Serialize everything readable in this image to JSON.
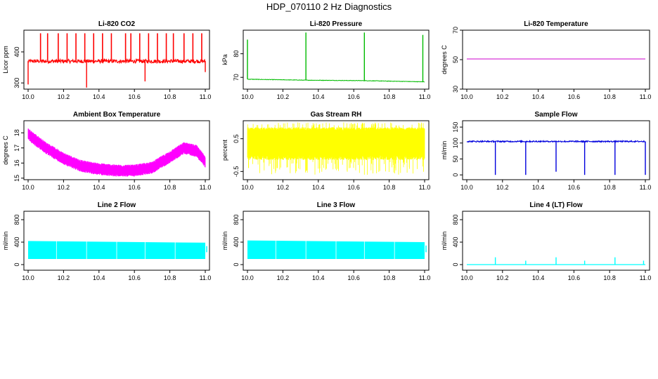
{
  "page_title": "HDP_070110  2 Hz Diagnostics",
  "chart_data": [
    {
      "id": "co2",
      "type": "line",
      "title": "Li-820 CO2",
      "ylabel": "Licor ppm",
      "color": "#ff0000",
      "xlim": [
        10.0,
        11.0
      ],
      "ylim": [
        280,
        470
      ],
      "yticks": [
        300,
        400
      ],
      "xticks": [
        "10.0",
        "10.2",
        "10.4",
        "10.6",
        "10.8",
        "11.0"
      ],
      "baseline": 370,
      "noise": 6,
      "spikes": [
        10.07,
        10.11,
        10.17,
        10.22,
        10.27,
        10.32,
        10.37,
        10.42,
        10.47,
        10.55,
        10.58,
        10.63,
        10.68,
        10.73,
        10.78,
        10.82,
        10.88,
        10.93,
        10.98
      ],
      "spike_value": 460,
      "dips": [
        {
          "x": 10.0,
          "y": 295
        },
        {
          "x": 10.33,
          "y": 285
        },
        {
          "x": 10.66,
          "y": 305
        },
        {
          "x": 11.0,
          "y": 335
        }
      ]
    },
    {
      "id": "pressure",
      "type": "line",
      "title": "Li-820 Pressure",
      "ylabel": "kPa",
      "color": "#00bb00",
      "xlim": [
        10.0,
        11.0
      ],
      "ylim": [
        65,
        90
      ],
      "yticks": [
        70,
        80
      ],
      "xticks": [
        "10.0",
        "10.2",
        "10.4",
        "10.6",
        "10.8",
        "11.0"
      ],
      "points": [
        [
          10.0,
          69.2
        ],
        [
          10.33,
          68.8
        ],
        [
          10.66,
          68.6
        ],
        [
          11.0,
          68.1
        ]
      ],
      "spikes": [
        {
          "x": 10.0,
          "y": 86
        },
        {
          "x": 10.33,
          "y": 89
        },
        {
          "x": 10.66,
          "y": 89
        },
        {
          "x": 10.99,
          "y": 88
        }
      ]
    },
    {
      "id": "li820temp",
      "type": "line",
      "title": "Li-820 Temperature",
      "ylabel": "degrees C",
      "color": "#cc00cc",
      "xlim": [
        10.0,
        11.0
      ],
      "ylim": [
        30,
        70
      ],
      "yticks": [
        30,
        50,
        70
      ],
      "xticks": [
        "10.0",
        "10.2",
        "10.4",
        "10.6",
        "10.8",
        "11.0"
      ],
      "constant": 50.5
    },
    {
      "id": "boxtemp",
      "type": "line",
      "title": "Ambient Box Temperature",
      "ylabel": "degrees C",
      "color": "#ff00ff",
      "xlim": [
        10.0,
        11.0
      ],
      "ylim": [
        14.9,
        18.8
      ],
      "yticks": [
        15,
        16,
        17,
        18
      ],
      "xticks": [
        "10.0",
        "10.2",
        "10.4",
        "10.6",
        "10.8",
        "11.0"
      ],
      "points": [
        [
          10.0,
          17.9
        ],
        [
          10.1,
          17.0
        ],
        [
          10.2,
          16.3
        ],
        [
          10.3,
          15.8
        ],
        [
          10.4,
          15.6
        ],
        [
          10.5,
          15.5
        ],
        [
          10.6,
          15.5
        ],
        [
          10.7,
          15.7
        ],
        [
          10.8,
          16.4
        ],
        [
          10.88,
          17.0
        ],
        [
          10.95,
          16.8
        ],
        [
          11.0,
          16.1
        ]
      ],
      "band": 0.5
    },
    {
      "id": "rh",
      "type": "line",
      "title": "Gas Stream RH",
      "ylabel": "percent",
      "color": "#ffff00",
      "xlim": [
        10.0,
        11.0
      ],
      "ylim": [
        -0.75,
        1.05
      ],
      "yticks": [
        -0.5,
        0.5
      ],
      "xticks": [
        "10.0",
        "10.2",
        "10.4",
        "10.6",
        "10.8",
        "11.0"
      ],
      "band_low": 0.0,
      "band_high": 0.85,
      "min": -0.6,
      "max": 1.0
    },
    {
      "id": "sampleflow",
      "type": "line",
      "title": "Sample Flow",
      "ylabel": "ml/min",
      "color": "#0000dd",
      "xlim": [
        10.0,
        11.0
      ],
      "ylim": [
        -15,
        170
      ],
      "yticks": [
        0,
        50,
        100,
        150
      ],
      "xticks": [
        "10.0",
        "10.2",
        "10.4",
        "10.6",
        "10.8",
        "11.0"
      ],
      "baseline": 105,
      "noise": 2,
      "dips": [
        {
          "x": 10.16,
          "y": 0
        },
        {
          "x": 10.33,
          "y": 0
        },
        {
          "x": 10.5,
          "y": 10
        },
        {
          "x": 10.66,
          "y": 0
        },
        {
          "x": 10.83,
          "y": 0
        },
        {
          "x": 11.0,
          "y": 0
        }
      ]
    },
    {
      "id": "line2",
      "type": "line",
      "title": "Line 2 Flow",
      "ylabel": "ml/min",
      "color": "#00ffff",
      "xlim": [
        10.0,
        11.0
      ],
      "ylim": [
        -100,
        950
      ],
      "yticks": [
        0,
        400,
        800
      ],
      "xticks": [
        "10.0",
        "10.2",
        "10.4",
        "10.6",
        "10.8",
        "11.0"
      ],
      "band_low": 100,
      "band_high": 420,
      "band_high_end": 390
    },
    {
      "id": "line3",
      "type": "line",
      "title": "Line 3 Flow",
      "ylabel": "ml/min",
      "color": "#00ffff",
      "xlim": [
        10.0,
        11.0
      ],
      "ylim": [
        -100,
        950
      ],
      "yticks": [
        0,
        400,
        800
      ],
      "xticks": [
        "10.0",
        "10.2",
        "10.4",
        "10.6",
        "10.8",
        "11.0"
      ],
      "band_low": 100,
      "band_high": 430,
      "band_high_end": 400
    },
    {
      "id": "line4",
      "type": "line",
      "title": "Line 4 (LT) Flow",
      "ylabel": "ml/min",
      "color": "#00ffff",
      "xlim": [
        10.0,
        11.0
      ],
      "ylim": [
        -100,
        950
      ],
      "yticks": [
        0,
        400,
        800
      ],
      "xticks": [
        "10.0",
        "10.2",
        "10.4",
        "10.6",
        "10.8",
        "11.0"
      ],
      "baseline": 0,
      "spikes": [
        {
          "x": 10.16,
          "y": 130
        },
        {
          "x": 10.33,
          "y": 70
        },
        {
          "x": 10.5,
          "y": 130
        },
        {
          "x": 10.66,
          "y": 70
        },
        {
          "x": 10.83,
          "y": 130
        },
        {
          "x": 10.99,
          "y": 70
        }
      ]
    }
  ]
}
